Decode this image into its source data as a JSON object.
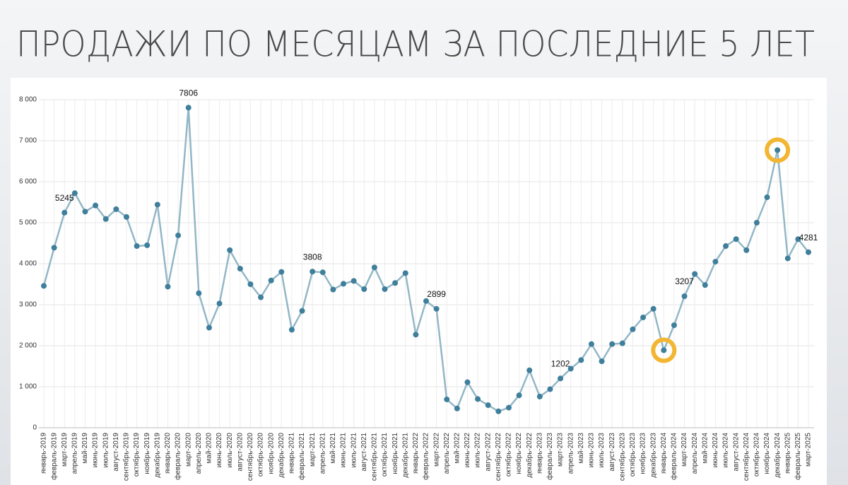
{
  "chart_data": {
    "type": "line",
    "title": "ПРОДАЖИ ПО МЕСЯЦАМ ЗА ПОСЛЕДНИЕ 5 ЛЕТ",
    "categories": [
      "январь-2019",
      "февраль-2019",
      "март-2019",
      "апрель-2019",
      "май-2019",
      "июнь-2019",
      "июль-2019",
      "август-2019",
      "сентябрь-2019",
      "октябрь-2019",
      "ноябрь-2019",
      "декабрь-2019",
      "январь-2020",
      "февраль-2020",
      "март-2020",
      "апрель-2020",
      "май-2020",
      "июнь-2020",
      "июль-2020",
      "август-2020",
      "сентябрь-2020",
      "октябрь-2020",
      "ноябрь-2020",
      "декабрь-2020",
      "январь-2021",
      "февраль-2021",
      "март-2021",
      "апрель-2021",
      "май-2021",
      "июнь-2021",
      "июль-2021",
      "август-2021",
      "сентябрь-2021",
      "октябрь-2021",
      "ноябрь-2021",
      "декабрь-2021",
      "январь-2022",
      "февраль-2022",
      "март-2022",
      "апрель-2022",
      "май-2022",
      "июнь-2022",
      "июль-2022",
      "август-2022",
      "сентябрь-2022",
      "октябрь-2022",
      "ноябрь-2022",
      "декабрь-2022",
      "январь-2023",
      "февраль-2023",
      "март-2023",
      "апрель-2023",
      "май-2023",
      "июнь-2023",
      "июль-2023",
      "август-2023",
      "сентябрь-2023",
      "октябрь-2023",
      "ноябрь-2023",
      "декабрь-2023",
      "январь-2024",
      "февраль-2024",
      "март-2024",
      "апрель-2024",
      "май-2024",
      "июнь-2024",
      "июль-2024",
      "август-2024",
      "сентябрь-2024",
      "октябрь-2024",
      "ноябрь-2024",
      "декабрь-2024",
      "январь-2025",
      "февраль-2025",
      "март-2025"
    ],
    "values": [
      3460,
      4390,
      5245,
      5720,
      5270,
      5420,
      5090,
      5330,
      5140,
      4430,
      4450,
      5440,
      3440,
      4690,
      7806,
      3280,
      2440,
      3030,
      4330,
      3880,
      3500,
      3180,
      3590,
      3800,
      2390,
      2850,
      3808,
      3790,
      3370,
      3510,
      3580,
      3380,
      3910,
      3380,
      3530,
      3770,
      2270,
      3090,
      2899,
      690,
      470,
      1110,
      700,
      550,
      400,
      490,
      790,
      1400,
      760,
      940,
      1202,
      1440,
      1650,
      2040,
      1620,
      2040,
      2060,
      2400,
      2690,
      2900,
      1890,
      2500,
      3207,
      3750,
      3480,
      4050,
      4430,
      4600,
      4330,
      5000,
      5620,
      6770,
      4130,
      4600,
      4281
    ],
    "value_labels": [
      null,
      null,
      "5245",
      null,
      null,
      null,
      null,
      null,
      null,
      null,
      null,
      null,
      null,
      null,
      "7806",
      null,
      null,
      null,
      null,
      null,
      null,
      null,
      null,
      null,
      null,
      null,
      "3808",
      null,
      null,
      null,
      null,
      null,
      null,
      null,
      null,
      null,
      null,
      null,
      "2899",
      null,
      null,
      null,
      null,
      null,
      null,
      null,
      null,
      null,
      null,
      null,
      "1202",
      null,
      null,
      null,
      null,
      null,
      null,
      null,
      null,
      null,
      null,
      null,
      "3207",
      null,
      null,
      null,
      null,
      null,
      null,
      null,
      null,
      null,
      null,
      null,
      "4281"
    ],
    "line_color": "#93b7c6",
    "marker_color": "#3f7f9c",
    "highlights": [
      60,
      71
    ],
    "highlight_color": "#f2b632",
    "ylim": [
      0,
      8000
    ],
    "yticks": [
      0,
      {
        "value": 1000,
        "label": "1 000"
      },
      {
        "value": 2000,
        "label": "2 000"
      },
      {
        "value": 3000,
        "label": "3 000"
      },
      {
        "value": 4000,
        "label": "4 000"
      },
      {
        "value": 5000,
        "label": "5 000"
      },
      {
        "value": 6000,
        "label": "6 000"
      },
      {
        "value": 7000,
        "label": "7 000"
      },
      {
        "value": 8000,
        "label": "8 000"
      }
    ],
    "grid": true
  }
}
